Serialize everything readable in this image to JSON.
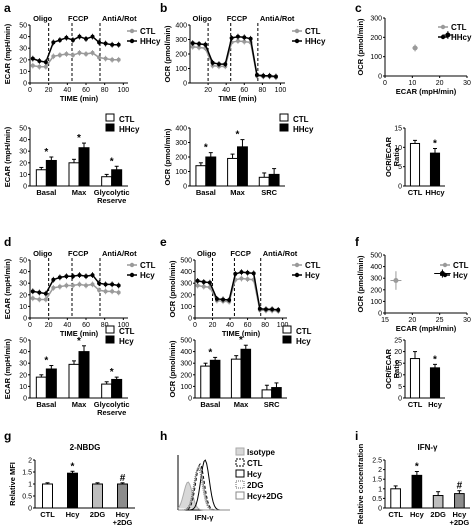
{
  "panel_labels": [
    "a",
    "b",
    "c",
    "d",
    "e",
    "f",
    "g",
    "h",
    "i"
  ],
  "colors": {
    "ctl": "#9a9a9a",
    "treat": "#000000",
    "bar_fill_ctl": "#ffffff",
    "bar_fill_treat": "#000000",
    "bar_fill_2dg": "#bdbdbd",
    "bar_fill_hcy2dg": "#8c8c8c"
  },
  "chart_data": [
    {
      "id": "a_top",
      "panel": "a",
      "type": "line",
      "injections": {
        "times": [
          20,
          45,
          75
        ],
        "labels": [
          "Oligo",
          "FCCP",
          "AntiA/Rot"
        ]
      },
      "xlabel": "TIME (min)",
      "ylabel": "ECAR (mpH/min)",
      "xlim": [
        0,
        105
      ],
      "xticks": [
        0,
        20,
        40,
        60,
        80,
        100
      ],
      "ylim": [
        0,
        50
      ],
      "yticks": [
        0,
        10,
        20,
        30,
        40,
        50
      ],
      "legend": [
        "CTL",
        "HHcy"
      ],
      "series": [
        {
          "name": "CTL",
          "x": [
            3,
            10,
            17,
            25,
            32,
            39,
            46,
            53,
            60,
            67,
            74,
            81,
            88,
            95
          ],
          "y": [
            15,
            14,
            14,
            23,
            24,
            25,
            24,
            26,
            25,
            26,
            22,
            21,
            20,
            20
          ]
        },
        {
          "name": "HHcy",
          "x": [
            3,
            10,
            17,
            25,
            32,
            39,
            46,
            53,
            60,
            67,
            74,
            81,
            88,
            95
          ],
          "y": [
            21,
            19,
            18,
            35,
            37,
            39,
            37,
            40,
            38,
            40,
            35,
            34,
            33,
            33
          ]
        }
      ]
    },
    {
      "id": "a_bottom",
      "panel": "a",
      "type": "bar",
      "categories": [
        "Basal",
        "Max",
        "Glycolytic\nReserve"
      ],
      "ylabel": "ECAR (mpH/min)",
      "ylim": [
        0,
        50
      ],
      "yticks": [
        0,
        10,
        20,
        30,
        40,
        50
      ],
      "legend": [
        "CTL",
        "HHcy"
      ],
      "series": [
        {
          "name": "CTL",
          "values": [
            14,
            20,
            8
          ],
          "err": [
            2,
            3,
            2
          ]
        },
        {
          "name": "HHcy",
          "values": [
            22,
            33,
            14
          ],
          "err": [
            3,
            4,
            3
          ]
        }
      ],
      "stars": [
        true,
        true,
        true
      ]
    },
    {
      "id": "b_top",
      "panel": "b",
      "type": "line",
      "injections": {
        "times": [
          20,
          45,
          75
        ],
        "labels": [
          "Oligo",
          "FCCP",
          "AntiA/Rot"
        ]
      },
      "xlabel": "TIME (min)",
      "ylabel": "OCR (pmol/min)",
      "xlim": [
        0,
        105
      ],
      "xticks": [
        20,
        40,
        60,
        80,
        100
      ],
      "ylim": [
        0,
        400
      ],
      "yticks": [
        0,
        100,
        200,
        300,
        400
      ],
      "legend": [
        "CTL",
        "HHcy"
      ],
      "series": [
        {
          "name": "CTL",
          "x": [
            3,
            10,
            17,
            25,
            32,
            39,
            46,
            53,
            60,
            67,
            74,
            81,
            88,
            95
          ],
          "y": [
            250,
            245,
            240,
            120,
            115,
            115,
            280,
            290,
            285,
            280,
            50,
            45,
            45,
            40
          ]
        },
        {
          "name": "HHcy",
          "x": [
            3,
            10,
            17,
            25,
            32,
            39,
            46,
            53,
            60,
            67,
            74,
            81,
            88,
            95
          ],
          "y": [
            275,
            270,
            265,
            140,
            130,
            130,
            310,
            320,
            315,
            305,
            55,
            50,
            50,
            45
          ]
        }
      ]
    },
    {
      "id": "b_bottom",
      "panel": "b",
      "type": "bar",
      "categories": [
        "Basal",
        "Max",
        "SRC"
      ],
      "ylabel": "OCR (pmol/min)",
      "ylim": [
        0,
        400
      ],
      "yticks": [
        0,
        100,
        200,
        300,
        400
      ],
      "legend": [
        "CTL",
        "HHcy"
      ],
      "series": [
        {
          "name": "CTL",
          "values": [
            140,
            190,
            60
          ],
          "err": [
            20,
            30,
            30
          ]
        },
        {
          "name": "HHcy",
          "values": [
            200,
            270,
            80
          ],
          "err": [
            30,
            50,
            40
          ]
        }
      ],
      "stars": [
        true,
        true,
        false
      ]
    },
    {
      "id": "c_top",
      "panel": "c",
      "type": "scatter",
      "xlabel": "ECAR (mpH/min)",
      "ylabel": "OCR (pmol/min)",
      "xlim": [
        0,
        30
      ],
      "xticks": [
        0,
        10,
        20,
        30
      ],
      "ylim": [
        0,
        300
      ],
      "yticks": [
        0,
        100,
        200,
        300
      ],
      "legend": [
        "CTL",
        "HHcy"
      ],
      "series": [
        {
          "name": "CTL",
          "x": [
            11
          ],
          "y": [
            145
          ],
          "xerr": [
            1
          ],
          "yerr": [
            18
          ]
        },
        {
          "name": "HHcy",
          "x": [
            23
          ],
          "y": [
            212
          ],
          "xerr": [
            2
          ],
          "yerr": [
            20
          ]
        }
      ]
    },
    {
      "id": "c_bottom",
      "panel": "c",
      "type": "bar",
      "categories": [
        "CTL",
        "HHcy"
      ],
      "ylabel": "OCR/ECAR\nRatio",
      "ylim": [
        0,
        15
      ],
      "yticks": [
        0,
        5,
        10,
        15
      ],
      "series": [
        {
          "name": "",
          "values": [
            11,
            8.5
          ],
          "err": [
            0.8,
            1.2
          ]
        }
      ],
      "stars": [
        false,
        true
      ]
    },
    {
      "id": "d_top",
      "panel": "d",
      "type": "line",
      "injections": {
        "times": [
          20,
          45,
          75
        ],
        "labels": [
          "Oligo",
          "FCCP",
          "AntiA/Rot"
        ]
      },
      "xlabel": "TIME (min)",
      "ylabel": "ECAR (mpH/min)",
      "xlim": [
        0,
        105
      ],
      "xticks": [
        0,
        20,
        40,
        60,
        80,
        100
      ],
      "ylim": [
        0,
        50
      ],
      "yticks": [
        0,
        10,
        20,
        30,
        40,
        50
      ],
      "legend": [
        "CTL",
        "Hcy"
      ],
      "series": [
        {
          "name": "CTL",
          "x": [
            3,
            10,
            17,
            25,
            32,
            39,
            46,
            53,
            60,
            67,
            74,
            81,
            88,
            95
          ],
          "y": [
            17,
            16,
            16,
            26,
            27,
            28,
            28,
            29,
            28,
            29,
            24,
            23,
            23,
            22
          ]
        },
        {
          "name": "Hcy",
          "x": [
            3,
            10,
            17,
            25,
            32,
            39,
            46,
            53,
            60,
            67,
            74,
            81,
            88,
            95
          ],
          "y": [
            23,
            22,
            21,
            33,
            35,
            36,
            36,
            37,
            36,
            37,
            30,
            29,
            29,
            28
          ]
        }
      ]
    },
    {
      "id": "d_bottom",
      "panel": "d",
      "type": "bar",
      "categories": [
        "Basal",
        "Max",
        "Glycolytic\nReserve"
      ],
      "ylabel": "ECAR (mpH/min)",
      "ylim": [
        0,
        50
      ],
      "yticks": [
        0,
        10,
        20,
        30,
        40,
        50
      ],
      "legend": [
        "CTL",
        "Hcy"
      ],
      "series": [
        {
          "name": "CTL",
          "values": [
            18,
            29,
            12
          ],
          "err": [
            2,
            3,
            2
          ]
        },
        {
          "name": "Hcy",
          "values": [
            25,
            40,
            16
          ],
          "err": [
            3,
            5,
            2
          ]
        }
      ],
      "stars": [
        true,
        true,
        true
      ]
    },
    {
      "id": "e_top",
      "panel": "e",
      "type": "line",
      "injections": {
        "times": [
          20,
          45,
          75
        ],
        "labels": [
          "Oligo",
          "FCCP",
          "AntiA/Rot"
        ]
      },
      "xlabel": "TIME (min)",
      "ylabel": "OCR (pmol/min)",
      "xlim": [
        0,
        105
      ],
      "xticks": [
        0,
        20,
        40,
        60,
        80,
        100
      ],
      "ylim": [
        0,
        500
      ],
      "yticks": [
        0,
        100,
        200,
        300,
        400,
        500
      ],
      "legend": [
        "CTL",
        "Hcy"
      ],
      "series": [
        {
          "name": "CTL",
          "x": [
            3,
            10,
            17,
            25,
            32,
            39,
            46,
            53,
            60,
            67,
            74,
            81,
            88,
            95
          ],
          "y": [
            280,
            270,
            265,
            150,
            145,
            140,
            330,
            340,
            335,
            330,
            70,
            65,
            65,
            60
          ]
        },
        {
          "name": "Hcy",
          "x": [
            3,
            10,
            17,
            25,
            32,
            39,
            46,
            53,
            60,
            67,
            74,
            81,
            88,
            95
          ],
          "y": [
            320,
            310,
            305,
            165,
            160,
            155,
            380,
            395,
            390,
            385,
            80,
            75,
            75,
            70
          ]
        }
      ]
    },
    {
      "id": "e_bottom",
      "panel": "e",
      "type": "bar",
      "categories": [
        "Basal",
        "Max",
        "SRC"
      ],
      "ylabel": "OCR (pmol/min)",
      "ylim": [
        0,
        500
      ],
      "yticks": [
        0,
        100,
        200,
        300,
        400,
        500
      ],
      "legend": [
        "CTL",
        "Hcy"
      ],
      "series": [
        {
          "name": "CTL",
          "values": [
            275,
            335,
            70
          ],
          "err": [
            25,
            30,
            40
          ]
        },
        {
          "name": "Hcy",
          "values": [
            325,
            420,
            90
          ],
          "err": [
            25,
            35,
            40
          ]
        }
      ],
      "stars": [
        true,
        true,
        false
      ]
    },
    {
      "id": "f_top",
      "panel": "f",
      "type": "scatter",
      "xlabel": "ECAR (mpH/min)",
      "ylabel": "OCR (pmol/min)",
      "xlim": [
        15,
        30
      ],
      "xticks": [
        15,
        20,
        25,
        30
      ],
      "ylim": [
        0,
        500
      ],
      "yticks": [
        0,
        100,
        200,
        300,
        400,
        500
      ],
      "legend": [
        "CTL",
        "Hcy"
      ],
      "series": [
        {
          "name": "CTL",
          "x": [
            17
          ],
          "y": [
            280
          ],
          "xerr": [
            1
          ],
          "yerr": [
            80
          ]
        },
        {
          "name": "Hcy",
          "x": [
            25.5
          ],
          "y": [
            340
          ],
          "xerr": [
            1.5
          ],
          "yerr": [
            35
          ]
        }
      ]
    },
    {
      "id": "f_bottom",
      "panel": "f",
      "type": "bar",
      "categories": [
        "CTL",
        "Hcy"
      ],
      "ylabel": "OCR/ECAR\nRatio",
      "ylim": [
        0,
        25
      ],
      "yticks": [
        0,
        5,
        10,
        15,
        20,
        25
      ],
      "series": [
        {
          "name": "",
          "values": [
            17,
            13
          ],
          "err": [
            3,
            1.5
          ]
        }
      ],
      "stars": [
        false,
        true
      ]
    },
    {
      "id": "g",
      "panel": "g",
      "type": "bar",
      "title": "2-NBDG",
      "categories": [
        "CTL",
        "Hcy",
        "2DG",
        "Hcy\n+2DG"
      ],
      "ylabel": "Relative MFI",
      "ylim": [
        0,
        2.0
      ],
      "yticks": [
        0,
        0.5,
        1.0,
        1.5,
        2.0
      ],
      "series": [
        {
          "name": "",
          "values": [
            1.0,
            1.45,
            1.0,
            1.0
          ],
          "err": [
            0.05,
            0.08,
            0.05,
            0.05
          ]
        }
      ],
      "marks": [
        "",
        "*",
        "",
        "#"
      ]
    },
    {
      "id": "h",
      "panel": "h",
      "type": "histogram",
      "xlabel": "IFN-γ",
      "legend": [
        "Isotype",
        "CTL",
        "Hcy",
        "2DG",
        "Hcy+2DG"
      ]
    },
    {
      "id": "i",
      "panel": "i",
      "type": "bar",
      "title": "IFN-γ",
      "categories": [
        "CTL",
        "Hcy",
        "2DG",
        "Hcy\n+2DG"
      ],
      "ylabel": "Relative concentration",
      "ylim": [
        0,
        2.5
      ],
      "yticks": [
        0.0,
        0.5,
        1.0,
        1.5,
        2.0,
        2.5
      ],
      "series": [
        {
          "name": "",
          "values": [
            1.0,
            1.7,
            0.65,
            0.75
          ],
          "err": [
            0.15,
            0.2,
            0.2,
            0.15
          ]
        }
      ],
      "marks": [
        "",
        "*",
        "",
        "#"
      ]
    }
  ]
}
